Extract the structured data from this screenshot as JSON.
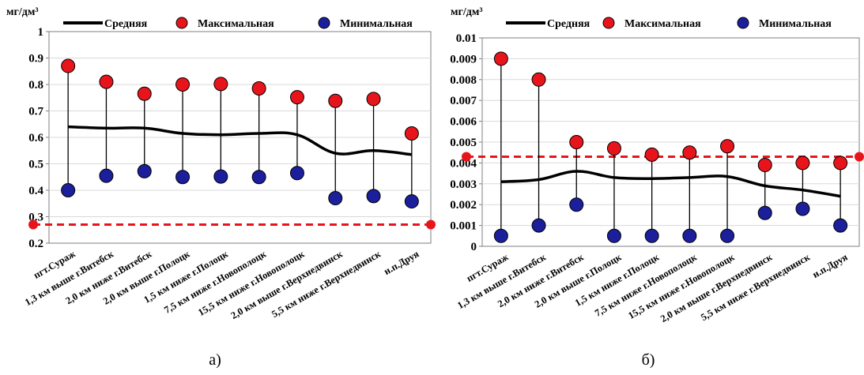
{
  "colors": {
    "mean_line": "#000000",
    "max_marker": "#e8141b",
    "min_marker": "#1b1f9c",
    "threshold": "#e8141b",
    "grid": "#d9d9d9",
    "axis": "#7f7f7f"
  },
  "chart_data": [
    {
      "type": "line",
      "unit_label": "мг/дм³",
      "caption": "а)",
      "legend": {
        "mean": "Средняя",
        "max": "Максимальная",
        "min": "Минимальная"
      },
      "legend_placement": "top",
      "grid": true,
      "ylim": [
        0.2,
        1.0
      ],
      "yticks": [
        "0.2",
        "0.3",
        "0.4",
        "0.5",
        "0.6",
        "0.7",
        "0.8",
        "0.9",
        "1"
      ],
      "categories": [
        "пгт.Сураж",
        "1,3 км выше г.Витебск",
        "2,0 км ниже г.Витебск",
        "2,0 км выше г.Полоцк",
        "1,5 км ниже г.Полоцк",
        "7,5 км ниже г.Новополоцк",
        "15,5 км ниже г.Новополоцк",
        "2,0 км выше г.Верхнедвинск",
        "5,5 км ниже г.Верхнедвинск",
        "н.п.Друя"
      ],
      "series": [
        {
          "name": "Средняя",
          "values": [
            0.64,
            0.635,
            0.635,
            0.615,
            0.61,
            0.615,
            0.61,
            0.54,
            0.55,
            0.535
          ]
        },
        {
          "name": "Максимальная",
          "values": [
            0.87,
            0.81,
            0.765,
            0.8,
            0.802,
            0.785,
            0.752,
            0.738,
            0.745,
            0.615
          ]
        },
        {
          "name": "Минимальная",
          "values": [
            0.4,
            0.455,
            0.472,
            0.45,
            0.452,
            0.45,
            0.465,
            0.37,
            0.378,
            0.358
          ]
        }
      ],
      "threshold": 0.27
    },
    {
      "type": "line",
      "unit_label": "мг/дм³",
      "caption": "б)",
      "legend": {
        "mean": "Средняя",
        "max": "Максимальная",
        "min": "Минимальная"
      },
      "legend_placement": "top",
      "grid": true,
      "ylim": [
        0,
        0.01
      ],
      "yticks": [
        "0",
        "0.001",
        "0.002",
        "0.003",
        "0.004",
        "0.005",
        "0.006",
        "0.007",
        "0.008",
        "0.009",
        "0.01"
      ],
      "categories": [
        "пгт.Сураж",
        "1,3 км выше г.Витебск",
        "2,0 км ниже г.Витебск",
        "2,0 км выше г.Полоцк",
        "1,5 км ниже г.Полоцк",
        "7,5 км ниже г.Новополоцк",
        "15,5 км ниже г.Новополоцк",
        "2,0 км выше г.Верхнедвинск",
        "5,5 км ниже г.Верхнедвинск",
        "н.п.Друя"
      ],
      "series": [
        {
          "name": "Средняя",
          "values": [
            0.0031,
            0.0032,
            0.0036,
            0.0033,
            0.00325,
            0.0033,
            0.00335,
            0.0029,
            0.0027,
            0.0024
          ]
        },
        {
          "name": "Максимальная",
          "values": [
            0.009,
            0.008,
            0.005,
            0.0047,
            0.0044,
            0.0045,
            0.0048,
            0.0039,
            0.004,
            0.004
          ]
        },
        {
          "name": "Минимальная",
          "values": [
            0.0005,
            0.001,
            0.002,
            0.0005,
            0.0005,
            0.0005,
            0.0005,
            0.0016,
            0.0018,
            0.001
          ]
        }
      ],
      "threshold": 0.0043
    }
  ]
}
